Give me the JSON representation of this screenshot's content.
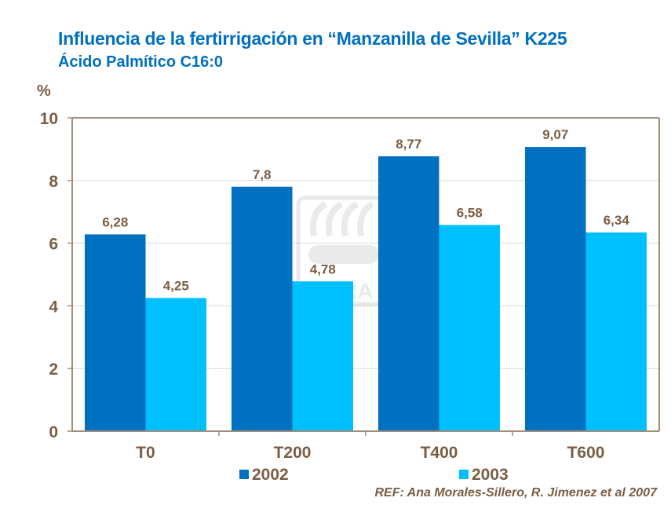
{
  "title": "Influencia de la fertirrigación en “Manzanilla de Sevilla” K225",
  "subtitle": "Ácido Palmítico C16:0",
  "reference": "REF: Ana Morales-Sillero,  R. Jimenez et al 2007",
  "watermark": "YARA",
  "chart_data": {
    "type": "bar",
    "ylabel": "%",
    "ylim": [
      0,
      10
    ],
    "yticks": [
      0,
      2,
      4,
      6,
      8,
      10
    ],
    "categories": [
      "T0",
      "T200",
      "T400",
      "T600"
    ],
    "series": [
      {
        "name": "2002",
        "color": "#0070c0",
        "values": [
          6.28,
          7.8,
          8.77,
          9.07
        ],
        "labels": [
          "6,28",
          "7,8",
          "8,77",
          "9,07"
        ]
      },
      {
        "name": "2003",
        "color": "#00bfff",
        "values": [
          4.25,
          4.78,
          6.58,
          6.34
        ],
        "labels": [
          "4,25",
          "4,78",
          "6,58",
          "6,34"
        ]
      }
    ],
    "grid": true,
    "legend": "bottom"
  }
}
